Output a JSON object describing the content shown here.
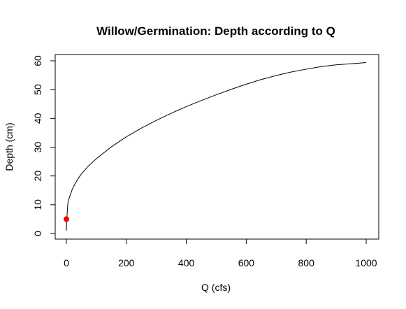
{
  "chart_data": {
    "type": "line",
    "title": "Willow/Germination: Depth according to Q",
    "xlabel": "Q (cfs)",
    "ylabel": "Depth (cm)",
    "xlim": [
      0,
      1000
    ],
    "ylim": [
      0,
      60
    ],
    "x_ticks": [
      0,
      200,
      400,
      600,
      800,
      1000
    ],
    "y_ticks": [
      0,
      10,
      20,
      30,
      40,
      50,
      60
    ],
    "x_tick_labels": [
      "0",
      "200",
      "400",
      "600",
      "800",
      "1000"
    ],
    "y_tick_labels": [
      "0",
      "10",
      "20",
      "30",
      "40",
      "50",
      "60"
    ],
    "grid": false,
    "legend": "none",
    "series": [
      {
        "x": [
          0,
          1,
          2,
          3,
          4,
          5,
          7,
          10,
          15,
          20,
          30,
          40,
          50,
          75,
          100,
          150,
          200,
          250,
          300,
          350,
          400,
          450,
          500,
          550,
          600,
          650,
          700,
          750,
          800,
          850,
          900,
          950,
          1000
        ],
        "y": [
          1.0,
          4.0,
          6.0,
          7.5,
          9.0,
          10.5,
          11.5,
          12.5,
          14.0,
          15.5,
          17.5,
          19.2,
          20.7,
          23.6,
          26.0,
          30.1,
          33.6,
          36.6,
          39.3,
          41.8,
          44.1,
          46.2,
          48.2,
          50.1,
          51.9,
          53.5,
          54.9,
          56.1,
          57.1,
          58.0,
          58.6,
          59.0,
          59.4
        ],
        "color": "#000000"
      }
    ],
    "points": [
      {
        "x": 0,
        "y": 5,
        "color": "#ff0000"
      }
    ]
  }
}
